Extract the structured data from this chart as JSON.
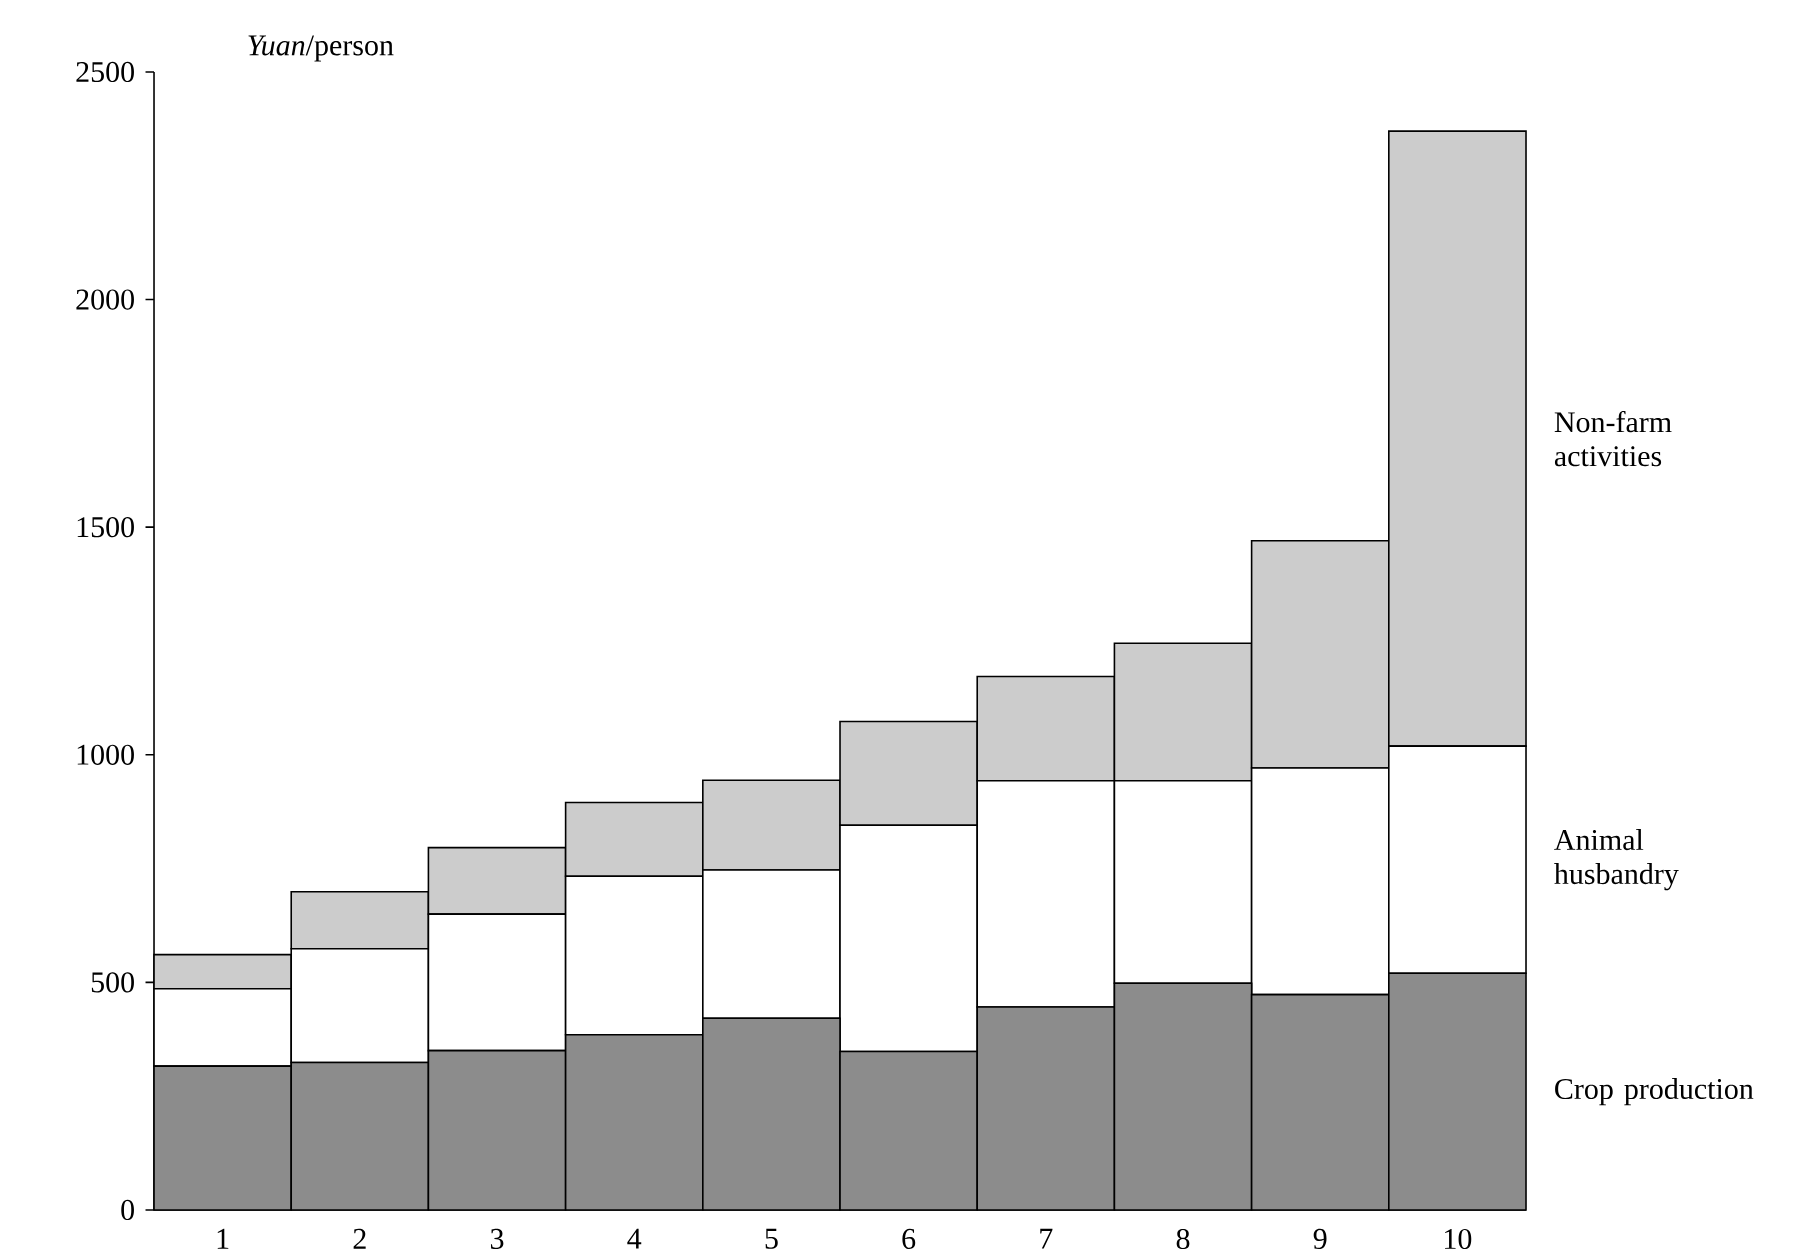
{
  "chart_data": {
    "type": "bar",
    "stacked": true,
    "ylabel": "*Yuan*/person",
    "categories": [
      "1",
      "2",
      "3",
      "4",
      "5",
      "6",
      "7",
      "8",
      "9",
      "10"
    ],
    "series": [
      {
        "name": "Crop production",
        "color": "#8c8c8c",
        "values": [
          316,
          324,
          350,
          385,
          421,
          348,
          446,
          498,
          473,
          520
        ]
      },
      {
        "name": "Animal husbandry",
        "color": "#ffffff",
        "values": [
          170,
          250,
          300,
          348,
          326,
          497,
          497,
          445,
          498,
          499
        ]
      },
      {
        "name": "Non-farm activities",
        "color": "#cccccc",
        "values": [
          75,
          125,
          146,
          162,
          197,
          228,
          229,
          302,
          499,
          1351
        ]
      }
    ],
    "ylim": [
      0,
      2500
    ],
    "yticks": [
      0,
      500,
      1000,
      1500,
      2000,
      2500
    ],
    "grid": false,
    "legend": false
  }
}
